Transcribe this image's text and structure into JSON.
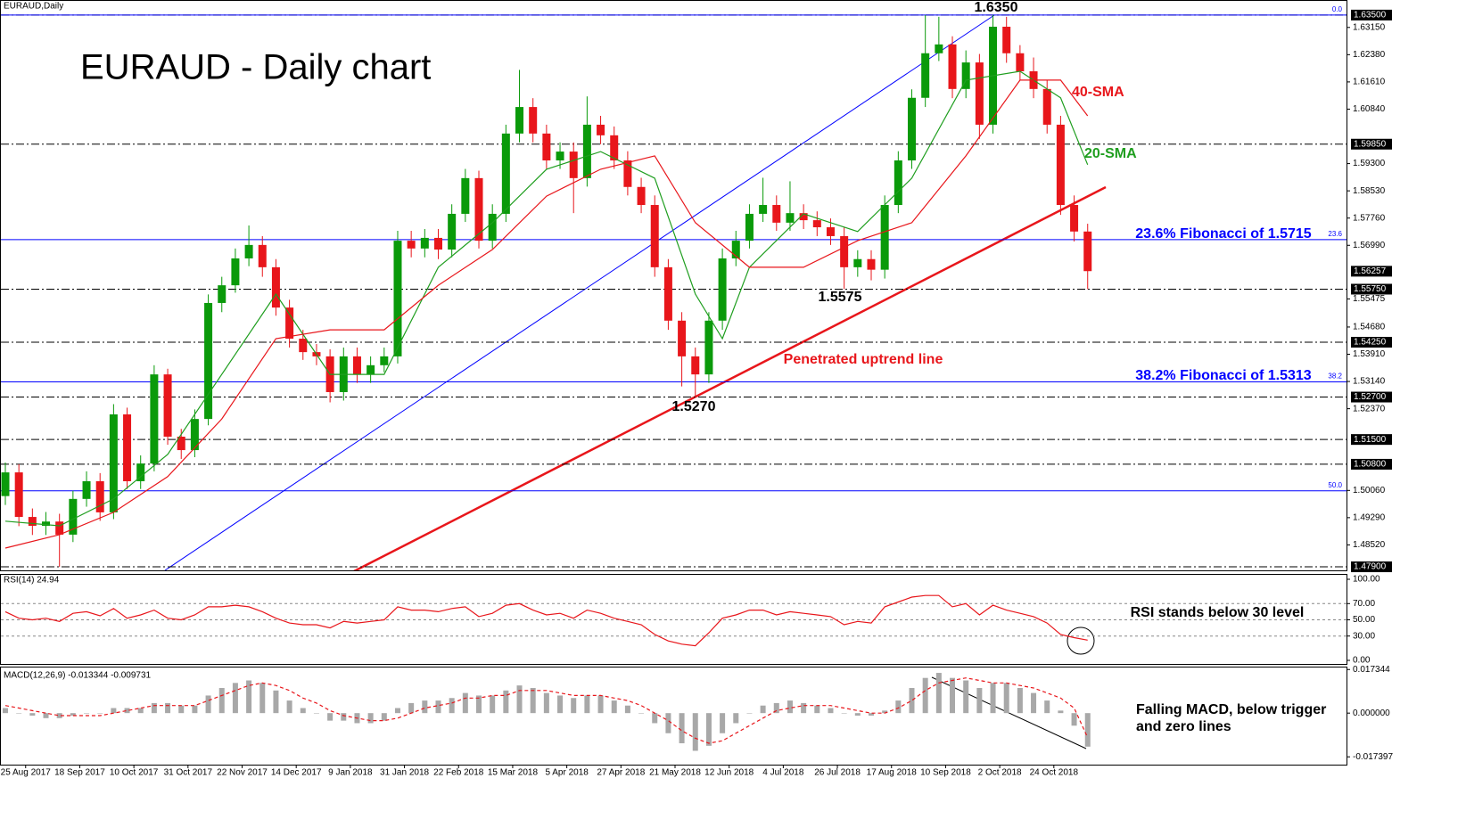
{
  "chart_data": [
    {
      "type": "candlestick",
      "title": "EURAUD - Daily chart",
      "symbol": "EURAUD,Daily",
      "xlim": [
        0,
        99
      ],
      "open": [
        1.499,
        1.5057,
        1.4931,
        1.4906,
        1.4918,
        1.4881,
        1.4982,
        1.5032,
        1.4944,
        1.5221,
        1.5032,
        1.5082,
        1.5334,
        1.5158,
        1.512,
        1.5208,
        1.5536,
        1.5586,
        1.5662,
        1.57,
        1.5637,
        1.5523,
        1.5435,
        1.5397,
        1.5385,
        1.5284,
        1.5385,
        1.5334,
        1.536,
        1.5385,
        1.5712,
        1.569,
        1.572,
        1.5687,
        1.5788,
        1.5889,
        1.5712,
        1.5788,
        1.6015,
        1.609,
        1.6015,
        1.5939,
        1.5964,
        1.5889,
        1.604,
        1.601,
        1.5939,
        1.5864,
        1.5813,
        1.5637,
        1.5486,
        1.5385,
        1.5334,
        1.5486,
        1.5662,
        1.5712,
        1.5788,
        1.5813,
        1.5763,
        1.579,
        1.577,
        1.575,
        1.5725,
        1.5637,
        1.566,
        1.563,
        1.5813,
        1.5939,
        1.6116,
        1.6242,
        1.6267,
        1.6141,
        1.6216,
        1.604,
        1.6317,
        1.6242,
        1.6191,
        1.6141,
        1.604,
        1.5813,
        1.5738
      ],
      "high": [
        1.5085,
        1.508,
        1.4955,
        1.4945,
        1.494,
        1.5005,
        1.506,
        1.5055,
        1.525,
        1.524,
        1.5105,
        1.536,
        1.535,
        1.518,
        1.5235,
        1.556,
        1.561,
        1.569,
        1.5755,
        1.5725,
        1.566,
        1.5545,
        1.546,
        1.542,
        1.5405,
        1.541,
        1.541,
        1.5385,
        1.541,
        1.574,
        1.574,
        1.5745,
        1.5745,
        1.5815,
        1.5915,
        1.591,
        1.5815,
        1.604,
        1.6195,
        1.6115,
        1.604,
        1.599,
        1.599,
        1.612,
        1.6065,
        1.6035,
        1.5965,
        1.589,
        1.584,
        1.566,
        1.551,
        1.541,
        1.551,
        1.569,
        1.574,
        1.5815,
        1.589,
        1.584,
        1.588,
        1.5815,
        1.5795,
        1.5775,
        1.575,
        1.5685,
        1.5685,
        1.584,
        1.5965,
        1.614,
        1.635,
        1.6345,
        1.629,
        1.625,
        1.624,
        1.635,
        1.6345,
        1.6265,
        1.623,
        1.6165,
        1.6065,
        1.584,
        1.576
      ],
      "low": [
        1.4965,
        1.4905,
        1.488,
        1.488,
        1.479,
        1.486,
        1.496,
        1.492,
        1.4925,
        1.501,
        1.501,
        1.506,
        1.5135,
        1.5095,
        1.51,
        1.519,
        1.551,
        1.5565,
        1.564,
        1.561,
        1.55,
        1.541,
        1.5375,
        1.536,
        1.5255,
        1.526,
        1.531,
        1.531,
        1.534,
        1.5365,
        1.5665,
        1.5665,
        1.566,
        1.5665,
        1.5765,
        1.569,
        1.569,
        1.5765,
        1.599,
        1.599,
        1.5915,
        1.5915,
        1.579,
        1.5865,
        1.5985,
        1.5915,
        1.584,
        1.579,
        1.561,
        1.546,
        1.53,
        1.527,
        1.531,
        1.546,
        1.564,
        1.569,
        1.5765,
        1.574,
        1.574,
        1.5745,
        1.5725,
        1.57,
        1.5575,
        1.561,
        1.56,
        1.5605,
        1.579,
        1.5915,
        1.609,
        1.622,
        1.6115,
        1.6115,
        1.6,
        1.6015,
        1.6215,
        1.6165,
        1.6115,
        1.6015,
        1.5785,
        1.571,
        1.5575
      ],
      "close": [
        1.5057,
        1.4931,
        1.4906,
        1.4918,
        1.4881,
        1.4982,
        1.5032,
        1.4944,
        1.5221,
        1.5032,
        1.5082,
        1.5334,
        1.5158,
        1.512,
        1.5208,
        1.5536,
        1.5586,
        1.5662,
        1.57,
        1.5637,
        1.5523,
        1.5435,
        1.5397,
        1.5385,
        1.5284,
        1.5385,
        1.5334,
        1.536,
        1.5385,
        1.5712,
        1.569,
        1.572,
        1.5687,
        1.5788,
        1.5889,
        1.5712,
        1.5788,
        1.6015,
        1.609,
        1.6015,
        1.5939,
        1.5964,
        1.5889,
        1.604,
        1.601,
        1.5939,
        1.5864,
        1.5813,
        1.5637,
        1.5486,
        1.5385,
        1.5334,
        1.5486,
        1.5662,
        1.5712,
        1.5788,
        1.5813,
        1.5763,
        1.579,
        1.577,
        1.575,
        1.5725,
        1.5637,
        1.566,
        1.563,
        1.5813,
        1.5939,
        1.6116,
        1.6242,
        1.6267,
        1.6141,
        1.6216,
        1.604,
        1.6317,
        1.6242,
        1.6191,
        1.6141,
        1.604,
        1.5813,
        1.5738,
        1.5626
      ],
      "up_color": "#0a9a0a",
      "down_color": "#e8161b",
      "series": [
        {
          "name": "20-SMA",
          "color": "#1f9e1f",
          "x": [
            0,
            4,
            8,
            12,
            16,
            20,
            24,
            28,
            32,
            36,
            40,
            44,
            48,
            51,
            53,
            55,
            59,
            63,
            67,
            71,
            75,
            78,
            80
          ],
          "values": [
            1.4919,
            1.4906,
            1.4982,
            1.5108,
            1.5334,
            1.5561,
            1.5334,
            1.5334,
            1.5637,
            1.5763,
            1.5914,
            1.5964,
            1.5889,
            1.5561,
            1.5435,
            1.5637,
            1.5788,
            1.5738,
            1.5889,
            1.6166,
            1.6191,
            1.6116,
            1.5927
          ]
        },
        {
          "name": "40-SMA",
          "color": "#e8161b",
          "x": [
            0,
            4,
            8,
            12,
            16,
            20,
            24,
            28,
            32,
            36,
            40,
            44,
            48,
            51,
            55,
            59,
            63,
            67,
            71,
            75,
            78,
            80
          ],
          "values": [
            1.4843,
            1.4881,
            1.4944,
            1.5045,
            1.5208,
            1.5435,
            1.546,
            1.546,
            1.5586,
            1.5687,
            1.5838,
            1.5914,
            1.5952,
            1.5763,
            1.5637,
            1.5637,
            1.5712,
            1.5763,
            1.5952,
            1.6166,
            1.6166,
            1.6065
          ]
        }
      ],
      "ylim": [
        1.478,
        1.6385
      ],
      "yticks": [
        {
          "value": 1.6315,
          "label": "1.63150"
        },
        {
          "value": 1.6238,
          "label": "1.62380"
        },
        {
          "value": 1.6161,
          "label": "1.61610"
        },
        {
          "value": 1.6084,
          "label": "1.60840"
        },
        {
          "value": 1.593,
          "label": "1.59300"
        },
        {
          "value": 1.5853,
          "label": "1.58530"
        },
        {
          "value": 1.5776,
          "label": "1.57760"
        },
        {
          "value": 1.5699,
          "label": "1.56990"
        },
        1.55475,
        {
          "value": 1.5468,
          "label": "1.54680"
        },
        {
          "value": 1.5391,
          "label": "1.53910"
        },
        {
          "value": 1.5314,
          "label": "1.53140"
        },
        {
          "value": 1.5237,
          "label": "1.52370"
        },
        {
          "value": 1.5006,
          "label": "1.50060"
        },
        {
          "value": 1.4929,
          "label": "1.49290"
        },
        {
          "value": 1.4852,
          "label": "1.48520"
        }
      ],
      "levels": [
        {
          "value": 1.635,
          "label": "1.63500"
        },
        {
          "value": 1.5985,
          "label": "1.59850"
        },
        {
          "value": 1.5575,
          "label": "1.55750"
        },
        {
          "value": 1.5425,
          "label": "1.54250"
        },
        {
          "value": 1.527,
          "label": "1.52700"
        },
        {
          "value": 1.515,
          "label": "1.51500"
        },
        {
          "value": 1.508,
          "label": "1.50800"
        },
        {
          "value": 1.479,
          "label": "1.47900"
        }
      ],
      "last_price": 1.56257,
      "fib_color": "#0000ff",
      "fib_levels": [
        {
          "value": 1.635,
          "label": "0.0"
        },
        {
          "value": 1.5715,
          "label": "23.6"
        },
        {
          "value": 1.5313,
          "label": "38.2"
        },
        {
          "value": 1.5005,
          "label": "50.0"
        }
      ],
      "annotations": [
        "1.6350",
        "1.5575",
        "1.5270",
        "23.6% Fibonacci of 1.5715",
        "38.2% Fibonacci of 1.5313",
        "Penetrated uptrend line"
      ]
    },
    {
      "type": "line",
      "label": "RSI(14) 24.94",
      "xlim": [
        0,
        99
      ],
      "color": "#e8161b",
      "values": [
        60,
        52,
        50,
        52,
        48,
        58,
        60,
        55,
        64,
        52,
        56,
        62,
        52,
        50,
        56,
        66,
        66,
        68,
        66,
        60,
        52,
        46,
        44,
        44,
        40,
        48,
        46,
        48,
        50,
        66,
        62,
        62,
        60,
        64,
        66,
        54,
        58,
        68,
        70,
        62,
        56,
        58,
        52,
        62,
        58,
        52,
        48,
        44,
        32,
        24,
        20,
        18,
        34,
        52,
        56,
        62,
        62,
        56,
        60,
        58,
        56,
        54,
        44,
        48,
        46,
        66,
        72,
        78,
        80,
        80,
        66,
        70,
        56,
        68,
        62,
        58,
        54,
        46,
        32,
        28,
        24.94
      ],
      "ylim": [
        -5.5,
        105.5
      ],
      "yticks": [
        {
          "value": 100,
          "label": "100.00"
        },
        {
          "value": 70,
          "label": "70.00"
        },
        {
          "value": 50,
          "label": "50.00"
        },
        {
          "value": 30,
          "label": "30.00"
        },
        {
          "value": 0,
          "label": "0.00"
        }
      ],
      "annotation": "RSI stands below 30 level"
    },
    {
      "type": "macd",
      "label": "MACD(12,26,9) -0.013344 -0.009731",
      "xlim": [
        0,
        99
      ],
      "hist_color": "#a8a8a8",
      "signal_color": "#e8161b",
      "histogram": [
        0.002,
        0.0,
        -0.001,
        -0.002,
        -0.002,
        -0.001,
        0.0,
        0.0,
        0.002,
        0.002,
        0.002,
        0.004,
        0.004,
        0.003,
        0.003,
        0.007,
        0.01,
        0.012,
        0.013,
        0.012,
        0.009,
        0.005,
        0.002,
        0.0,
        -0.003,
        -0.003,
        -0.004,
        -0.004,
        -0.003,
        0.002,
        0.004,
        0.005,
        0.005,
        0.006,
        0.008,
        0.007,
        0.007,
        0.009,
        0.011,
        0.01,
        0.008,
        0.007,
        0.006,
        0.007,
        0.007,
        0.005,
        0.003,
        0.0,
        -0.004,
        -0.008,
        -0.012,
        -0.015,
        -0.013,
        -0.008,
        -0.004,
        0.0,
        0.003,
        0.004,
        0.005,
        0.004,
        0.003,
        0.002,
        0.0,
        -0.001,
        -0.001,
        0.001,
        0.005,
        0.01,
        0.014,
        0.016,
        0.014,
        0.013,
        0.01,
        0.012,
        0.012,
        0.01,
        0.008,
        0.005,
        0.001,
        -0.005,
        -0.013344
      ],
      "signal": [
        0.003,
        0.002,
        0.001,
        0.0,
        -0.001,
        -0.001,
        -0.001,
        -0.001,
        0.0,
        0.001,
        0.002,
        0.003,
        0.003,
        0.003,
        0.003,
        0.005,
        0.007,
        0.009,
        0.011,
        0.012,
        0.011,
        0.009,
        0.006,
        0.004,
        0.001,
        -0.001,
        -0.002,
        -0.003,
        -0.003,
        -0.002,
        0.0,
        0.002,
        0.003,
        0.004,
        0.006,
        0.006,
        0.007,
        0.007,
        0.009,
        0.009,
        0.009,
        0.008,
        0.007,
        0.007,
        0.007,
        0.006,
        0.005,
        0.003,
        0.0,
        -0.003,
        -0.007,
        -0.01,
        -0.012,
        -0.011,
        -0.008,
        -0.005,
        -0.002,
        0.001,
        0.002,
        0.003,
        0.003,
        0.003,
        0.002,
        0.001,
        0.0,
        0.0,
        0.002,
        0.005,
        0.009,
        0.012,
        0.013,
        0.014,
        0.013,
        0.012,
        0.012,
        0.011,
        0.01,
        0.008,
        0.006,
        0.002,
        -0.009731
      ],
      "ylim": [
        -0.0205,
        0.0185
      ],
      "yticks": [
        {
          "value": 0.017344,
          "label": "0.017344"
        },
        {
          "value": 0,
          "label": "0.000000"
        },
        {
          "value": -0.017397,
          "label": "-0.017397"
        }
      ],
      "xticks": [
        {
          "value": 1.5,
          "label": "25 Aug 2017"
        },
        {
          "value": 5.5,
          "label": "18 Sep 2017"
        },
        {
          "value": 9.5,
          "label": "10 Oct 2017"
        },
        {
          "value": 13.5,
          "label": "31 Oct 2017"
        },
        {
          "value": 17.5,
          "label": "22 Nov 2017"
        },
        {
          "value": 21.5,
          "label": "14 Dec 2017"
        },
        {
          "value": 25.5,
          "label": "9 Jan 2018"
        },
        {
          "value": 29.5,
          "label": "31 Jan 2018"
        },
        {
          "value": 33.5,
          "label": "22 Feb 2018"
        },
        {
          "value": 37.5,
          "label": "15 Mar 2018"
        },
        {
          "value": 41.5,
          "label": "5 Apr 2018"
        },
        {
          "value": 45.5,
          "label": "27 Apr 2018"
        },
        {
          "value": 49.5,
          "label": "21 May 2018"
        },
        {
          "value": 53.5,
          "label": "12 Jun 2018"
        },
        {
          "value": 57.5,
          "label": "4 Jul 2018"
        },
        {
          "value": 61.5,
          "label": "26 Jul 2018"
        },
        {
          "value": 65.5,
          "label": "17 Aug 2018"
        },
        {
          "value": 69.5,
          "label": "10 Sep 2018"
        },
        {
          "value": 73.5,
          "label": "2 Oct 2018"
        },
        {
          "value": 77.5,
          "label": "24 Oct 2018"
        }
      ],
      "annotation": "Falling MACD, below trigger and zero lines"
    }
  ]
}
